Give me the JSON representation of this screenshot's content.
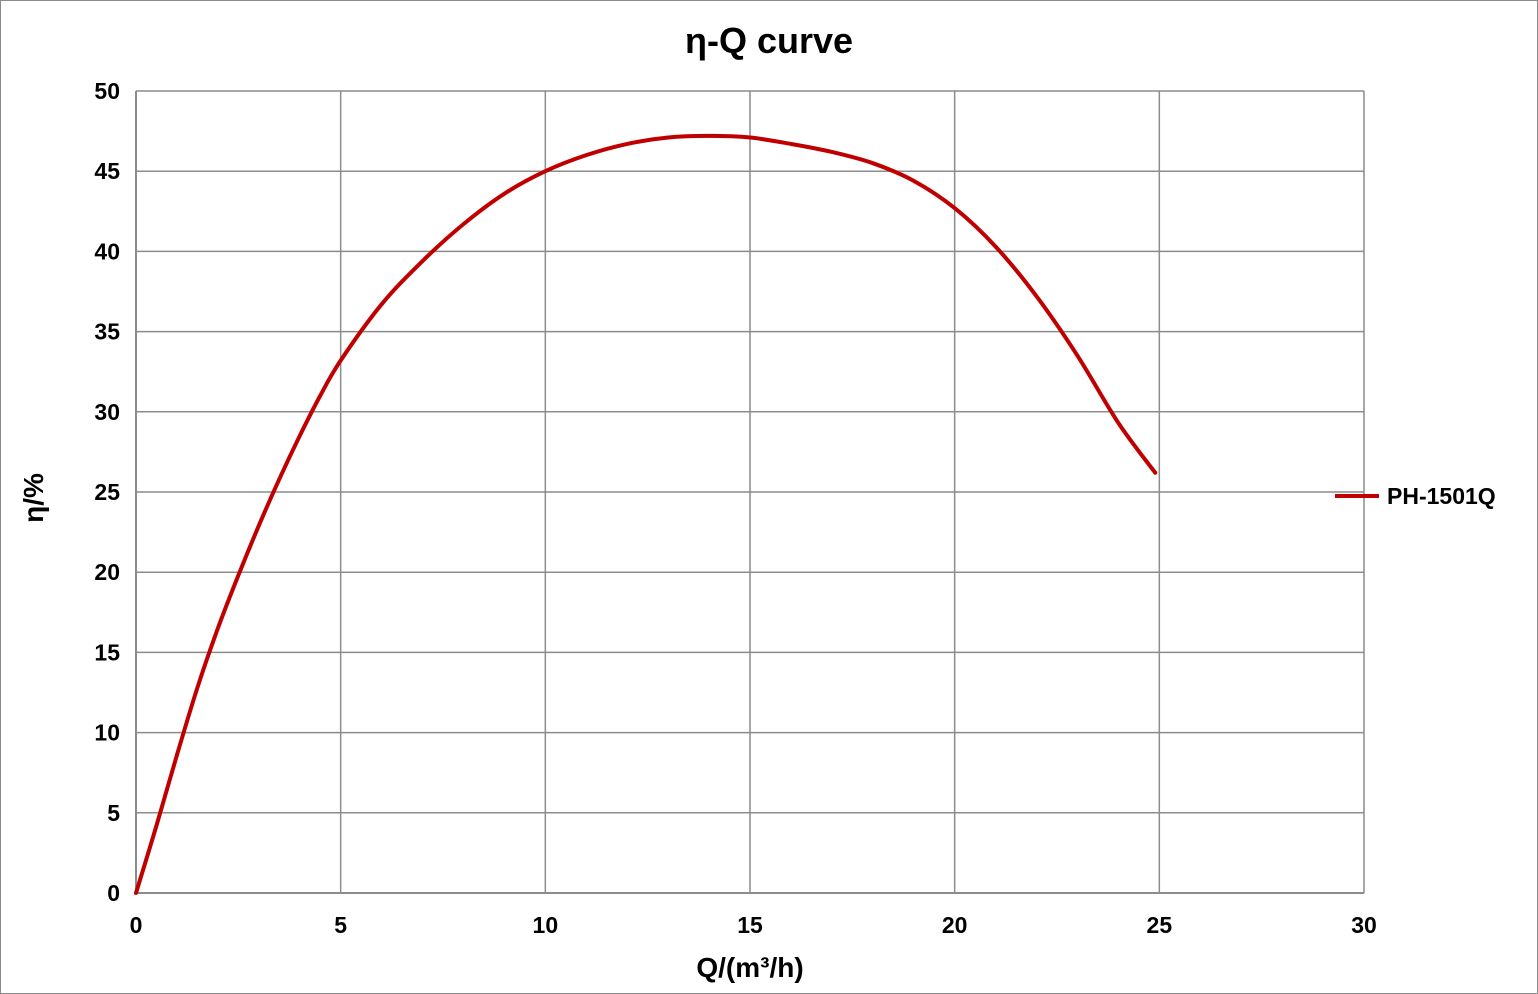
{
  "chart_data": {
    "type": "line",
    "title": "η-Q  curve",
    "xlabel": "Q/(m³/h)",
    "ylabel": "η/%",
    "xlim": [
      0,
      30
    ],
    "ylim": [
      0,
      50
    ],
    "x_ticks": [
      0,
      5,
      10,
      15,
      20,
      25,
      30
    ],
    "y_ticks": [
      0,
      5,
      10,
      15,
      20,
      25,
      30,
      35,
      40,
      45,
      50
    ],
    "grid": true,
    "legend_position": "right",
    "series": [
      {
        "name": "PH-1501Q",
        "color": "#c00000",
        "x": [
          0,
          0.5,
          1.0,
          1.5,
          2.0,
          2.5,
          3.0,
          3.5,
          4.0,
          4.5,
          5.0,
          6.0,
          7.0,
          8.0,
          9.0,
          10.0,
          11.0,
          12.0,
          13.0,
          14.0,
          15.0,
          16.0,
          17.0,
          18.0,
          19.0,
          20.0,
          21.0,
          22.0,
          23.0,
          24.0,
          24.9
        ],
        "y": [
          0,
          4.2,
          8.6,
          12.8,
          16.5,
          19.8,
          22.9,
          25.8,
          28.5,
          31.0,
          33.2,
          36.7,
          39.4,
          41.7,
          43.6,
          45.0,
          46.0,
          46.7,
          47.1,
          47.2,
          47.1,
          46.7,
          46.2,
          45.5,
          44.4,
          42.7,
          40.3,
          37.2,
          33.5,
          29.3,
          26.2
        ]
      }
    ]
  }
}
